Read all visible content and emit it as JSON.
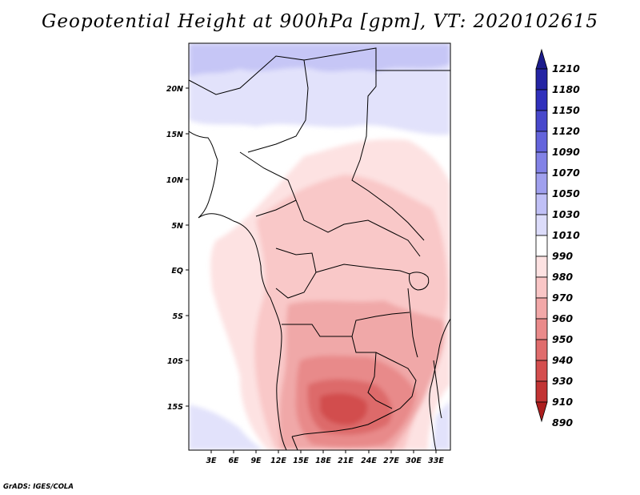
{
  "title": "Geopotential Height at 900hPa [gpm], VT: 2020102615",
  "credit": "GrADS: IGES/COLA",
  "map": {
    "lat_labels": [
      "20N",
      "15N",
      "10N",
      "5N",
      "EQ",
      "5S",
      "10S",
      "15S"
    ],
    "lon_labels": [
      "3E",
      "6E",
      "9E",
      "12E",
      "15E",
      "18E",
      "21E",
      "24E",
      "27E",
      "30E",
      "33E"
    ],
    "legend": [
      {
        "label": "1210",
        "color": "#1c1c8c"
      },
      {
        "label": "1180",
        "color": "#2424a4"
      },
      {
        "label": "1150",
        "color": "#3030bc"
      },
      {
        "label": "1120",
        "color": "#4848cc"
      },
      {
        "label": "1090",
        "color": "#6464dc"
      },
      {
        "label": "1070",
        "color": "#8282e6"
      },
      {
        "label": "1050",
        "color": "#a0a0ee"
      },
      {
        "label": "1030",
        "color": "#c0c0f6"
      },
      {
        "label": "1010",
        "color": "#dcdcfa"
      },
      {
        "label": "990",
        "color": "#ffffff"
      },
      {
        "label": "980",
        "color": "#fde2e2"
      },
      {
        "label": "970",
        "color": "#f9c6c6"
      },
      {
        "label": "960",
        "color": "#f2a8a8"
      },
      {
        "label": "950",
        "color": "#ea8a8a"
      },
      {
        "label": "940",
        "color": "#e06c6c"
      },
      {
        "label": "930",
        "color": "#d44e4e"
      },
      {
        "label": "910",
        "color": "#c23434"
      },
      {
        "label": "890",
        "color": "#ad1e1e"
      }
    ]
  }
}
